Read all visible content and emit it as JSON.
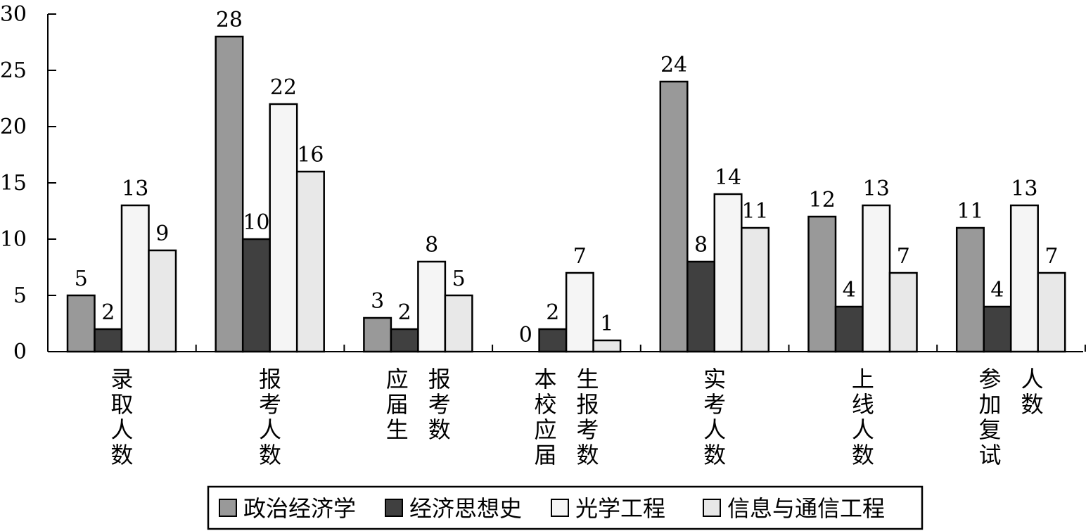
{
  "chart_data": {
    "type": "bar",
    "categories": [
      "录取人数",
      "报考人数",
      "应届生报考数",
      "本校应届生报考数",
      "实考人数",
      "上线人数",
      "参加复试人数"
    ],
    "category_label_lines": [
      [
        "录取人数"
      ],
      [
        "报考人数"
      ],
      [
        "应届生",
        "报考数"
      ],
      [
        "本校应届",
        "生报考数"
      ],
      [
        "实考人数"
      ],
      [
        "上线人数"
      ],
      [
        "参加复试",
        "人数"
      ]
    ],
    "series": [
      {
        "name": "政治经济学",
        "values": [
          5,
          28,
          3,
          0,
          24,
          12,
          11
        ],
        "color": "#999999"
      },
      {
        "name": "经济思想史",
        "values": [
          2,
          10,
          2,
          2,
          8,
          4,
          4
        ],
        "color": "#404040"
      },
      {
        "name": "光学工程",
        "values": [
          13,
          22,
          8,
          7,
          14,
          13,
          13
        ],
        "color": "#f5f5f5"
      },
      {
        "name": "信息与通信工程",
        "values": [
          9,
          16,
          5,
          1,
          11,
          7,
          7
        ],
        "color": "#e8e8e8"
      }
    ],
    "ylim": [
      0,
      30
    ],
    "yticks": [
      "0",
      "5",
      "10",
      "15",
      "20",
      "25",
      "30"
    ],
    "title": "",
    "xlabel": "",
    "ylabel": "",
    "legend_position": "bottom",
    "grid": false
  }
}
